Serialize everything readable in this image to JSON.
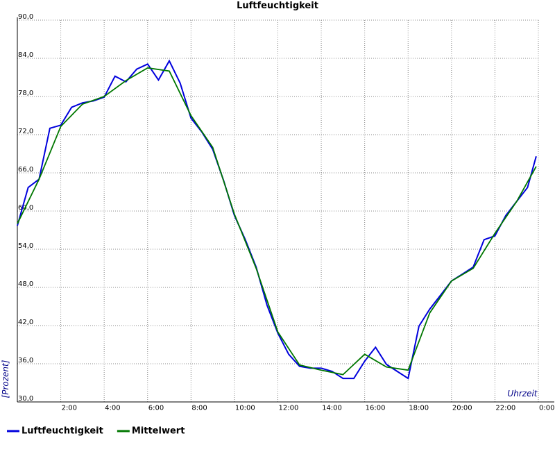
{
  "chart_data": {
    "type": "line",
    "title": "Luftfeuchtigkeit",
    "xlabel": "Uhrzeit",
    "ylabel": "[Prozent]",
    "xlim": [
      0,
      24
    ],
    "ylim": [
      30,
      90
    ],
    "xticks": [
      {
        "value": 2,
        "label": "2:00"
      },
      {
        "value": 4,
        "label": "4:00"
      },
      {
        "value": 6,
        "label": "6:00"
      },
      {
        "value": 8,
        "label": "8:00"
      },
      {
        "value": 10,
        "label": "10:00"
      },
      {
        "value": 12,
        "label": "12:00"
      },
      {
        "value": 14,
        "label": "14:00"
      },
      {
        "value": 16,
        "label": "16:00"
      },
      {
        "value": 18,
        "label": "18:00"
      },
      {
        "value": 20,
        "label": "20:00"
      },
      {
        "value": 22,
        "label": "22:00"
      },
      {
        "value": 24,
        "label": "0:00"
      }
    ],
    "yticks": [
      {
        "value": 30,
        "label": "30,0"
      },
      {
        "value": 36,
        "label": "36,0"
      },
      {
        "value": 42,
        "label": "42,0"
      },
      {
        "value": 48,
        "label": "48,0"
      },
      {
        "value": 54,
        "label": "54,0"
      },
      {
        "value": 60,
        "label": "60,0"
      },
      {
        "value": 66,
        "label": "66,0"
      },
      {
        "value": 72,
        "label": "72,0"
      },
      {
        "value": 78,
        "label": "78,0"
      },
      {
        "value": 84,
        "label": "84,0"
      },
      {
        "value": 90,
        "label": "90,0"
      }
    ],
    "grid": true,
    "series": [
      {
        "name": "Luftfeuchtigkeit",
        "color": "#0000dd",
        "x": [
          0,
          0.5,
          1,
          1.5,
          2,
          2.5,
          3,
          3.5,
          4,
          4.5,
          5,
          5.5,
          6,
          6.5,
          7,
          7.5,
          8,
          8.5,
          9,
          9.5,
          10,
          10.5,
          11,
          11.5,
          12,
          12.5,
          13,
          13.5,
          14,
          14.5,
          15,
          15.5,
          16,
          16.5,
          17,
          17.5,
          18,
          18.5,
          19,
          19.5,
          20,
          20.5,
          21,
          21.5,
          22,
          22.5,
          23,
          23.5,
          23.9
        ],
        "values": [
          57.7,
          63.7,
          65,
          73,
          73.5,
          76.3,
          77,
          77.3,
          77.9,
          81.2,
          80.3,
          82.3,
          83.1,
          80.6,
          83.6,
          80.1,
          74.6,
          72.4,
          69.7,
          64.8,
          59.3,
          55.5,
          51.2,
          45.2,
          40.8,
          37.5,
          35.6,
          35.3,
          35.3,
          34.8,
          33.7,
          33.7,
          36.4,
          38.6,
          35.9,
          34.8,
          33.7,
          41.9,
          44.6,
          46.8,
          49,
          50.1,
          51.2,
          55.5,
          56.1,
          59.3,
          61.5,
          63.7,
          68.6
        ]
      },
      {
        "name": "Mittelwert",
        "color": "#007700",
        "x": [
          0,
          1,
          2,
          3,
          4,
          5,
          6,
          7,
          8,
          9,
          10,
          11,
          12,
          13,
          14,
          15,
          16,
          17,
          18,
          19,
          20,
          21,
          22,
          23,
          23.9
        ],
        "values": [
          58,
          65,
          73.3,
          76.8,
          78,
          80.5,
          82.5,
          82,
          75,
          70,
          59.5,
          51,
          41,
          35.8,
          35,
          34.3,
          37.5,
          35.5,
          35,
          44,
          49,
          51,
          56.5,
          61.5,
          67
        ]
      }
    ]
  }
}
